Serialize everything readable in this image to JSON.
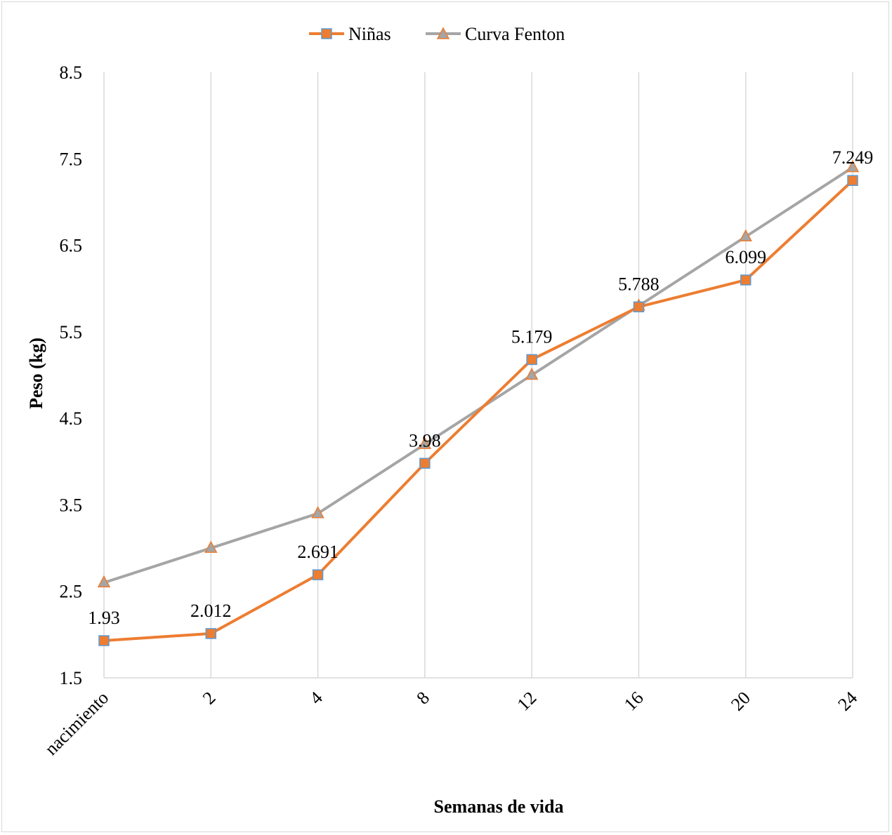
{
  "chart_data": {
    "type": "line",
    "categories": [
      "nacimiento",
      "2",
      "4",
      "8",
      "12",
      "16",
      "20",
      "24"
    ],
    "series": [
      {
        "name": "Niñas",
        "values": [
          1.93,
          2.012,
          2.691,
          3.98,
          5.179,
          5.788,
          6.099,
          7.249
        ],
        "data_labels": [
          "1.93",
          "2.012",
          "2.691",
          "3.98",
          "5.179",
          "5.788",
          "6.099",
          "7.249"
        ],
        "color": "#ed7d31",
        "marker": "square",
        "marker_fill": "#ed7d31",
        "marker_stroke": "#5b9bd5"
      },
      {
        "name": "Curva Fenton",
        "values": [
          2.6,
          3.0,
          3.4,
          4.2,
          5.0,
          5.8,
          6.6,
          7.4
        ],
        "color": "#a5a5a5",
        "marker": "triangle",
        "marker_fill": "#a5a5a5",
        "marker_stroke": "#ed7d31"
      }
    ],
    "title": "",
    "xlabel": "Semanas de vida",
    "ylabel": "Peso (kg)",
    "ylim": [
      1.5,
      8.5
    ],
    "yticks": [
      "1.5",
      "2.5",
      "3.5",
      "4.5",
      "5.5",
      "6.5",
      "7.5",
      "8.5"
    ],
    "grid": "vertical",
    "legend_position": "top-center"
  }
}
